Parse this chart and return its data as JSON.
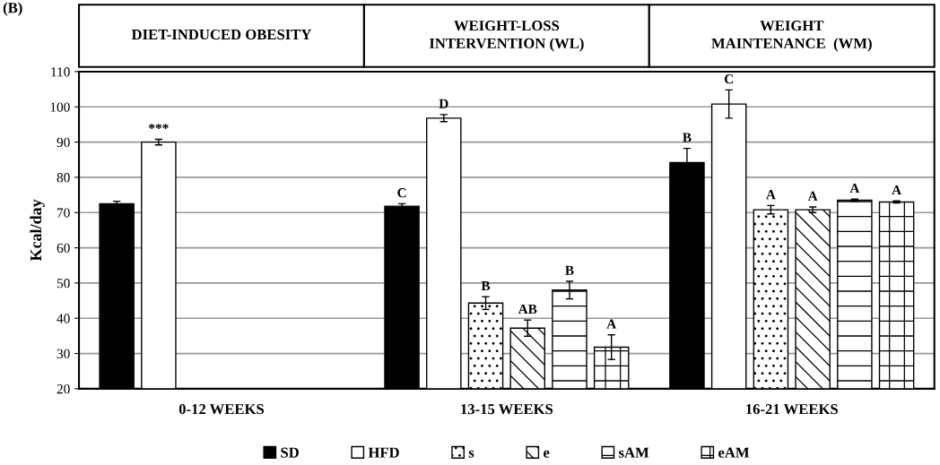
{
  "chart_data": {
    "type": "bar",
    "ylabel": "Kcal/day",
    "categories": [
      "0-12 WEEKS",
      "13-15 WEEKS",
      "16-21 WEEKS"
    ],
    "series": [
      {
        "name": "SD",
        "color": "#000000",
        "values": [
          72.5,
          71.8,
          84.2
        ],
        "errors": [
          0.7,
          0.7,
          4
        ],
        "value_labels": [
          null,
          "C",
          "B"
        ]
      },
      {
        "name": "HFD",
        "color": "#ffffff",
        "values": [
          90,
          96.8,
          100.8
        ],
        "errors": [
          0.8,
          1,
          4
        ],
        "value_labels": [
          "***",
          "D",
          "C"
        ]
      },
      {
        "name": "s",
        "color": "#ffffff",
        "values": [
          null,
          44.3,
          70.8
        ],
        "errors": [
          null,
          1.8,
          1.2
        ],
        "value_labels": [
          null,
          "B",
          "A"
        ]
      },
      {
        "name": "e",
        "color": "#ffffff",
        "values": [
          null,
          37.2,
          70.8
        ],
        "errors": [
          null,
          2.3,
          0.8
        ],
        "value_labels": [
          null,
          "AB",
          "A"
        ]
      },
      {
        "name": "sAM",
        "color": "#ffffff",
        "values": [
          null,
          48,
          73.5
        ],
        "errors": [
          null,
          2.5,
          0.3
        ],
        "value_labels": [
          null,
          "B",
          "A"
        ]
      },
      {
        "name": "eAM",
        "color": "#ffffff",
        "values": [
          null,
          31.8,
          73
        ],
        "errors": [
          null,
          3.5,
          0.3
        ],
        "value_labels": [
          null,
          "A",
          "A"
        ]
      }
    ],
    "ylim": [
      20,
      110
    ],
    "yticks": [
      20,
      30,
      40,
      50,
      60,
      70,
      80,
      90,
      100,
      110
    ],
    "grid": "y",
    "legend": "bottom",
    "annotations": [
      "(B)",
      "DIET-INDUCED OBESITY",
      "WEIGHT-LOSS\nINTERVENTION (WL)",
      "WEIGHT\nMAINTENANCE  (WM)"
    ]
  }
}
